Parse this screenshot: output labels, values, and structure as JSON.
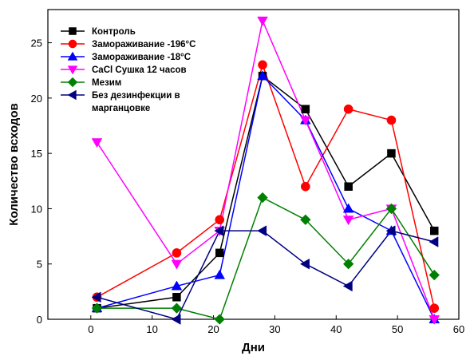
{
  "chart_data": {
    "type": "line",
    "xlabel": "Дни",
    "ylabel": "Количество всходов",
    "xlim": [
      -7,
      60
    ],
    "ylim": [
      0,
      28
    ],
    "xticks": [
      0,
      10,
      20,
      30,
      40,
      50,
      60
    ],
    "yticks": [
      0,
      5,
      10,
      15,
      20,
      25
    ],
    "grid": false,
    "legend_position": "top-left",
    "x": [
      1,
      14,
      21,
      28,
      35,
      42,
      49,
      56
    ],
    "series": [
      {
        "name": "Контроль",
        "color": "#000000",
        "marker": "square",
        "values": [
          1,
          2,
          6,
          22,
          19,
          12,
          15,
          8
        ]
      },
      {
        "name": "Замораживание -196°C",
        "color": "#ff0000",
        "marker": "circle",
        "values": [
          2,
          6,
          9,
          23,
          12,
          19,
          18,
          1
        ]
      },
      {
        "name": "Замораживание -18°C",
        "color": "#0000ff",
        "marker": "triangle-up",
        "values": [
          1,
          3,
          4,
          22,
          18,
          10,
          8,
          0
        ]
      },
      {
        "name": "CaCl Сушка 12 часов",
        "color": "#ff00ff",
        "marker": "triangle-down",
        "values": [
          16,
          5,
          8,
          27,
          18,
          9,
          10,
          0
        ]
      },
      {
        "name": "Мезим",
        "color": "#008000",
        "marker": "diamond",
        "values": [
          1,
          1,
          0,
          11,
          9,
          5,
          10,
          4
        ]
      },
      {
        "name": "Без дезинфекции в марганцовке",
        "legend_lines": [
          "Без дезинфекции в",
          "марганцовке"
        ],
        "color": "#000080",
        "marker": "triangle-left",
        "values": [
          2,
          0,
          8,
          8,
          5,
          3,
          8,
          7
        ]
      }
    ]
  }
}
